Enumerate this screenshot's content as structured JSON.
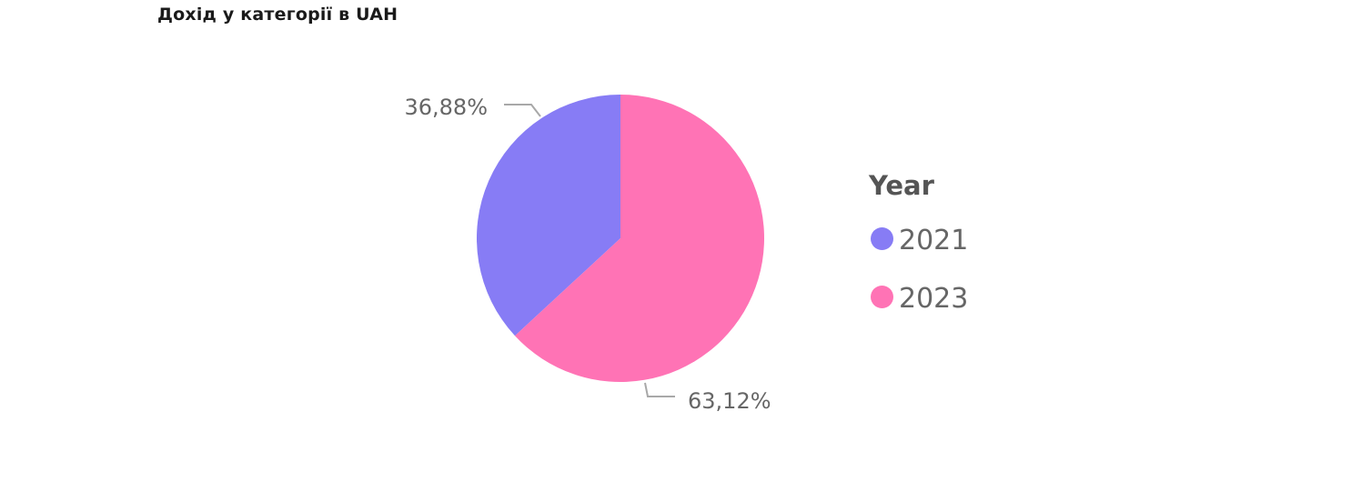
{
  "chart_data": {
    "type": "pie",
    "title": "Дохід у категорії в UAH",
    "legend_title": "Year",
    "legend_position": "right",
    "slices": [
      {
        "name": "2021",
        "value": 36.88,
        "label": "36,88%",
        "color": "#877CF5"
      },
      {
        "name": "2023",
        "value": 63.12,
        "label": "63,12%",
        "color": "#FF73B5"
      }
    ]
  }
}
